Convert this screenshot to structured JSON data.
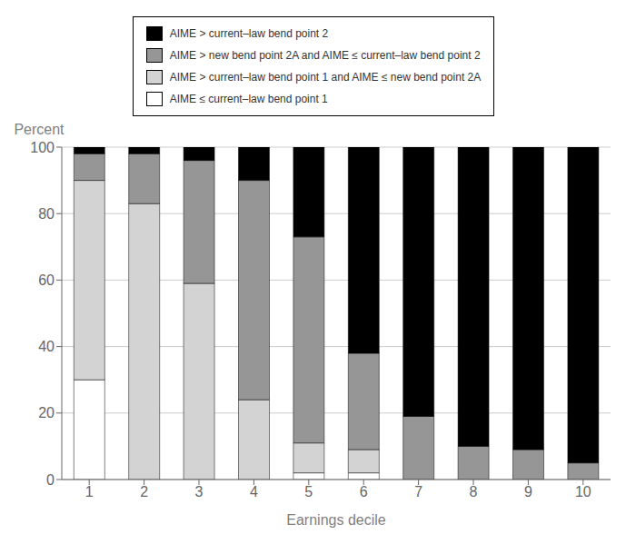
{
  "chart_data": {
    "type": "bar",
    "categories": [
      "1",
      "2",
      "3",
      "4",
      "5",
      "6",
      "7",
      "8",
      "9",
      "10"
    ],
    "series": [
      {
        "name": "AIME ≤ current–law bend point 1",
        "color": "#ffffff",
        "values": [
          30,
          0,
          0,
          0,
          2,
          2,
          0,
          0,
          0,
          0
        ]
      },
      {
        "name": "AIME > current–law bend point 1 and AIME ≤ new bend point 2A",
        "color": "#d3d3d3",
        "values": [
          60,
          83,
          59,
          24,
          9,
          7,
          0,
          0,
          0,
          0
        ]
      },
      {
        "name": "AIME > new bend point 2A and AIME ≤ current–law bend point 2",
        "color": "#969696",
        "values": [
          8,
          15,
          37,
          66,
          62,
          29,
          19,
          10,
          9,
          5
        ]
      },
      {
        "name": "AIME > current–law bend point 2",
        "color": "#000000",
        "values": [
          2,
          2,
          4,
          10,
          27,
          62,
          81,
          90,
          91,
          95
        ]
      }
    ],
    "xlabel": "Earnings decile",
    "ylabel": "Percent",
    "ylim": [
      0,
      100
    ],
    "yticks": [
      0,
      20,
      40,
      60,
      80,
      100
    ],
    "stacked": true,
    "grid": true,
    "legend": "top"
  }
}
